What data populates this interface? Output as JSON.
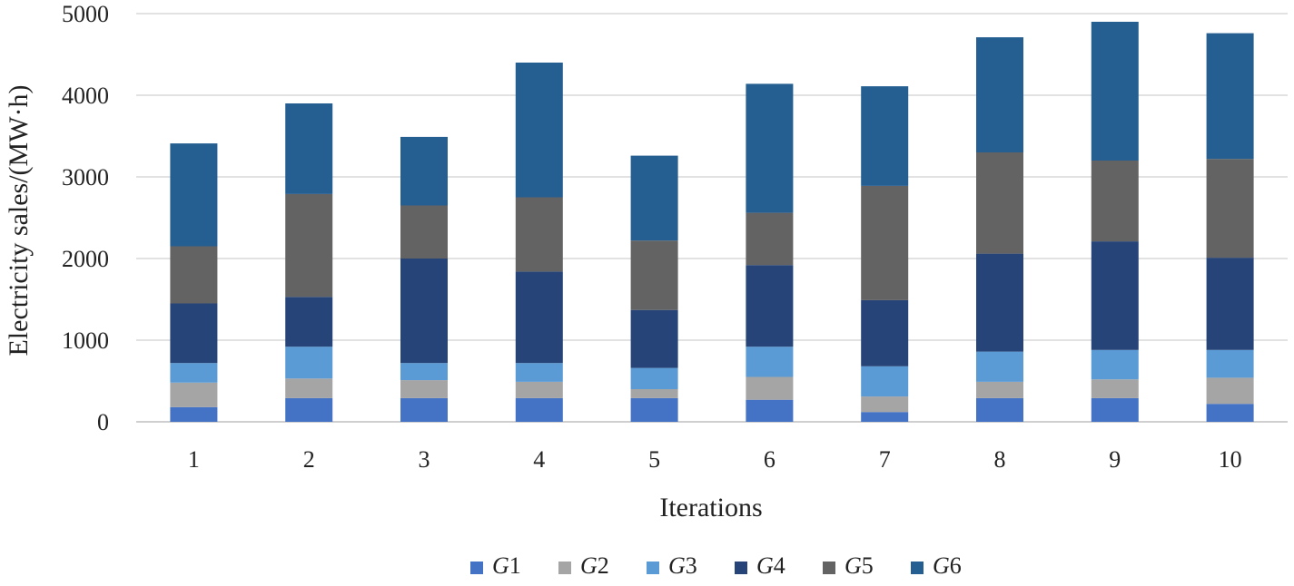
{
  "chart_data": {
    "type": "bar",
    "stacked": true,
    "title": "",
    "xlabel": "Iterations",
    "ylabel": "Electricity sales/(MW·h)",
    "ylim": [
      0,
      5000
    ],
    "yticks": [
      0,
      1000,
      2000,
      3000,
      4000,
      5000
    ],
    "grid": true,
    "legend_position": "bottom",
    "categories": [
      "1",
      "2",
      "3",
      "4",
      "5",
      "6",
      "7",
      "8",
      "9",
      "10"
    ],
    "series": [
      {
        "name": "G1",
        "prefix": "G",
        "suffix": "1",
        "color": "#4472c4",
        "values": [
          180,
          290,
          290,
          290,
          290,
          270,
          120,
          290,
          290,
          220
        ]
      },
      {
        "name": "G2",
        "prefix": "G",
        "suffix": "2",
        "color": "#a5a5a5",
        "values": [
          300,
          240,
          220,
          200,
          110,
          280,
          190,
          200,
          230,
          320
        ]
      },
      {
        "name": "G3",
        "prefix": "G",
        "suffix": "3",
        "color": "#5b9bd5",
        "values": [
          240,
          390,
          210,
          230,
          260,
          370,
          370,
          370,
          360,
          340
        ]
      },
      {
        "name": "G4",
        "prefix": "G",
        "suffix": "4",
        "color": "#264478",
        "values": [
          730,
          610,
          1280,
          1120,
          710,
          1000,
          810,
          1200,
          1330,
          1130
        ]
      },
      {
        "name": "G5",
        "prefix": "G",
        "suffix": "5",
        "color": "#636363",
        "values": [
          700,
          1260,
          650,
          910,
          850,
          640,
          1400,
          1240,
          990,
          1210
        ]
      },
      {
        "name": "G6",
        "prefix": "G",
        "suffix": "6",
        "color": "#255e91",
        "values": [
          1260,
          1110,
          840,
          1650,
          1040,
          1580,
          1220,
          1410,
          1700,
          1540
        ]
      }
    ]
  }
}
